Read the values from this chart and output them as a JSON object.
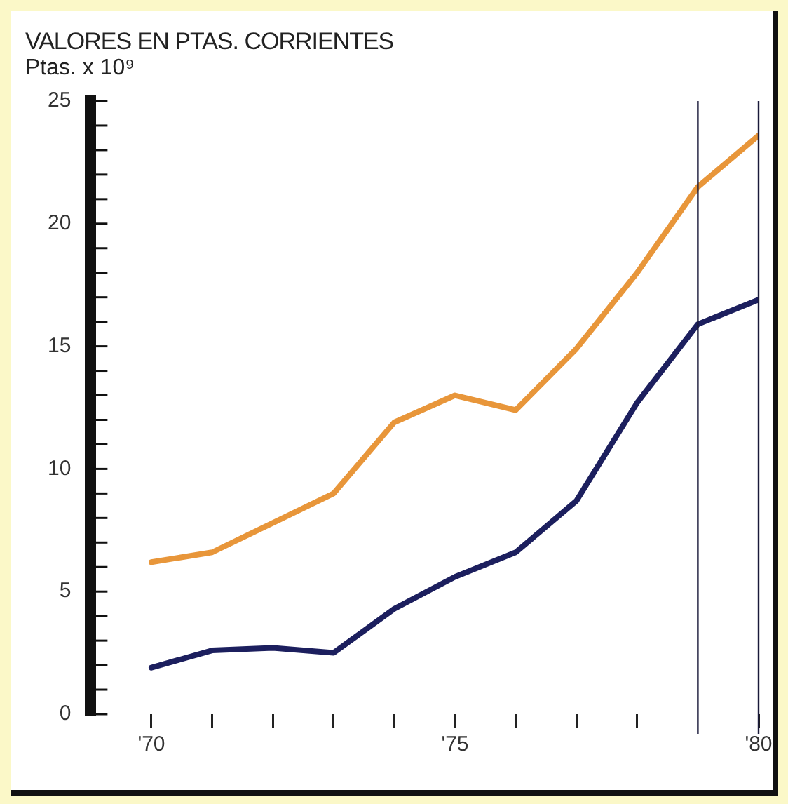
{
  "chart_data": {
    "type": "line",
    "title": "VALORES EN PTAS. CORRIENTES",
    "ylabel": "Ptas. x 10⁹",
    "x": [
      1970,
      1971,
      1972,
      1973,
      1974,
      1975,
      1976,
      1977,
      1978,
      1979,
      1980
    ],
    "series": [
      {
        "color": "#e8963a",
        "values": [
          6.2,
          6.6,
          7.8,
          9.0,
          11.9,
          13.0,
          12.4,
          14.9,
          18.0,
          21.5,
          23.6
        ]
      },
      {
        "color": "#1c1f5e",
        "values": [
          1.9,
          2.6,
          2.7,
          2.5,
          4.3,
          5.6,
          6.6,
          8.7,
          12.7,
          15.9,
          16.9
        ]
      }
    ],
    "xlim": [
      1969,
      1980
    ],
    "xticks": [
      {
        "value": 1970,
        "label": "'70"
      },
      {
        "value": 1971,
        "label": null
      },
      {
        "value": 1972,
        "label": null
      },
      {
        "value": 1973,
        "label": null
      },
      {
        "value": 1974,
        "label": null
      },
      {
        "value": 1975,
        "label": "'75"
      },
      {
        "value": 1976,
        "label": null
      },
      {
        "value": 1977,
        "label": null
      },
      {
        "value": 1978,
        "label": null
      },
      {
        "value": 1980,
        "label": "'80"
      }
    ],
    "ylim": [
      0,
      25
    ],
    "yticks": [
      0,
      {
        "value": 1,
        "label": null
      },
      {
        "value": 2,
        "label": null
      },
      {
        "value": 3,
        "label": null
      },
      {
        "value": 4,
        "label": null
      },
      5,
      {
        "value": 6,
        "label": null
      },
      {
        "value": 7,
        "label": null
      },
      {
        "value": 8,
        "label": null
      },
      {
        "value": 9,
        "label": null
      },
      10,
      {
        "value": 11,
        "label": null
      },
      {
        "value": 12,
        "label": null
      },
      {
        "value": 13,
        "label": null
      },
      {
        "value": 14,
        "label": null
      },
      15,
      {
        "value": 16,
        "label": null
      },
      {
        "value": 17,
        "label": null
      },
      {
        "value": 18,
        "label": null
      },
      {
        "value": 19,
        "label": null
      },
      20,
      {
        "value": 21,
        "label": null
      },
      {
        "value": 22,
        "label": null
      },
      {
        "value": 23,
        "label": null
      },
      {
        "value": 24,
        "label": null
      },
      25
    ],
    "ref_lines": [
      {
        "axis": "x",
        "value": 1979,
        "color": "#1a1a3a"
      },
      {
        "axis": "x",
        "value": 1980,
        "color": "#1a1a3a"
      }
    ],
    "grid": false
  }
}
